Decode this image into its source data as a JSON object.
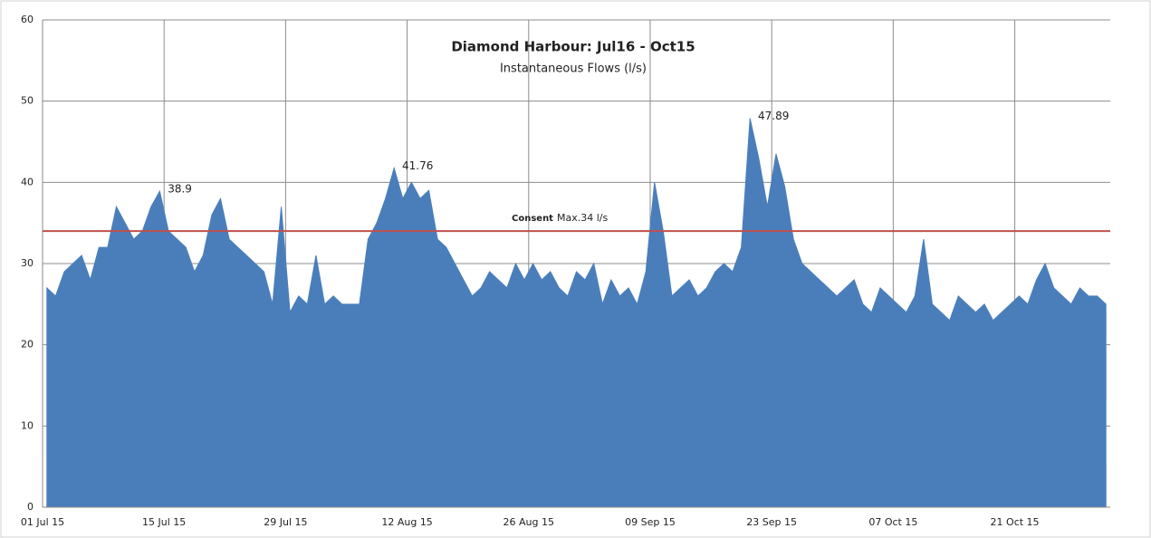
{
  "chart_data": {
    "type": "area",
    "title": "Diamond Harbour: Jul16 - Oct15",
    "subtitle": "Instantaneous Flows (l/s)",
    "color": "#4a7ebb",
    "categories": [
      "01 Jul 15",
      null,
      null,
      null,
      null,
      null,
      null,
      null,
      null,
      null,
      null,
      null,
      null,
      null,
      "15 Jul 15",
      null,
      null,
      null,
      null,
      null,
      null,
      null,
      null,
      null,
      null,
      null,
      null,
      null,
      "29 Jul 15",
      null,
      null,
      null,
      null,
      null,
      null,
      null,
      null,
      null,
      null,
      null,
      null,
      null,
      "12 Aug 15",
      null,
      null,
      null,
      null,
      null,
      null,
      null,
      null,
      null,
      null,
      null,
      null,
      null,
      "26 Aug 15",
      null,
      null,
      null,
      null,
      null,
      null,
      null,
      null,
      null,
      null,
      null,
      null,
      null,
      "09 Sep 15",
      null,
      null,
      null,
      null,
      null,
      null,
      null,
      null,
      null,
      null,
      null,
      null,
      null,
      "23 Sep 15",
      null,
      null,
      null,
      null,
      null,
      null,
      null,
      null,
      null,
      null,
      null,
      null,
      null,
      "07 Oct 15",
      null,
      null,
      null,
      null,
      null,
      null,
      null,
      null,
      null,
      null,
      null,
      null,
      null,
      "21 Oct 15",
      null,
      null,
      null,
      null,
      null,
      null,
      null,
      null,
      null,
      null
    ],
    "values": [
      27,
      26,
      29,
      30,
      31,
      28,
      32,
      32,
      37,
      35,
      33,
      34,
      37,
      38.9,
      34,
      33,
      32,
      29,
      31,
      36,
      38,
      33,
      32,
      31,
      30,
      29,
      25,
      37,
      24,
      26,
      25,
      31,
      25,
      26,
      25,
      25,
      25,
      33,
      35,
      38,
      41.76,
      38,
      40,
      38,
      39,
      33,
      32,
      30,
      28,
      26,
      27,
      29,
      28,
      27,
      30,
      28,
      30,
      28,
      29,
      27,
      26,
      29,
      28,
      30,
      25,
      28,
      26,
      27,
      25,
      29,
      40,
      34,
      26,
      27,
      28,
      26,
      27,
      29,
      30,
      29,
      32,
      47.89,
      43,
      37,
      43.5,
      39.5,
      33,
      30,
      29,
      28,
      27,
      26,
      27,
      28,
      25,
      24,
      27,
      26,
      25,
      24,
      26,
      33,
      25,
      24,
      23,
      26,
      25,
      24,
      25,
      23,
      24,
      25,
      26,
      25,
      28,
      30,
      27,
      26,
      25,
      27,
      26,
      26,
      25
    ],
    "annotations": [
      {
        "index": 13,
        "value": 38.9
      },
      {
        "index": 40,
        "value": 41.76
      },
      {
        "index": 81,
        "value": 47.89
      }
    ],
    "threshold": {
      "value": 34,
      "color": "#c0504d",
      "label_bold": "Consent",
      "label": "Max.34 l/s"
    },
    "ylim": [
      0,
      60
    ],
    "yticks": [
      0,
      10,
      20,
      30,
      40,
      50,
      60
    ],
    "grid": true
  }
}
